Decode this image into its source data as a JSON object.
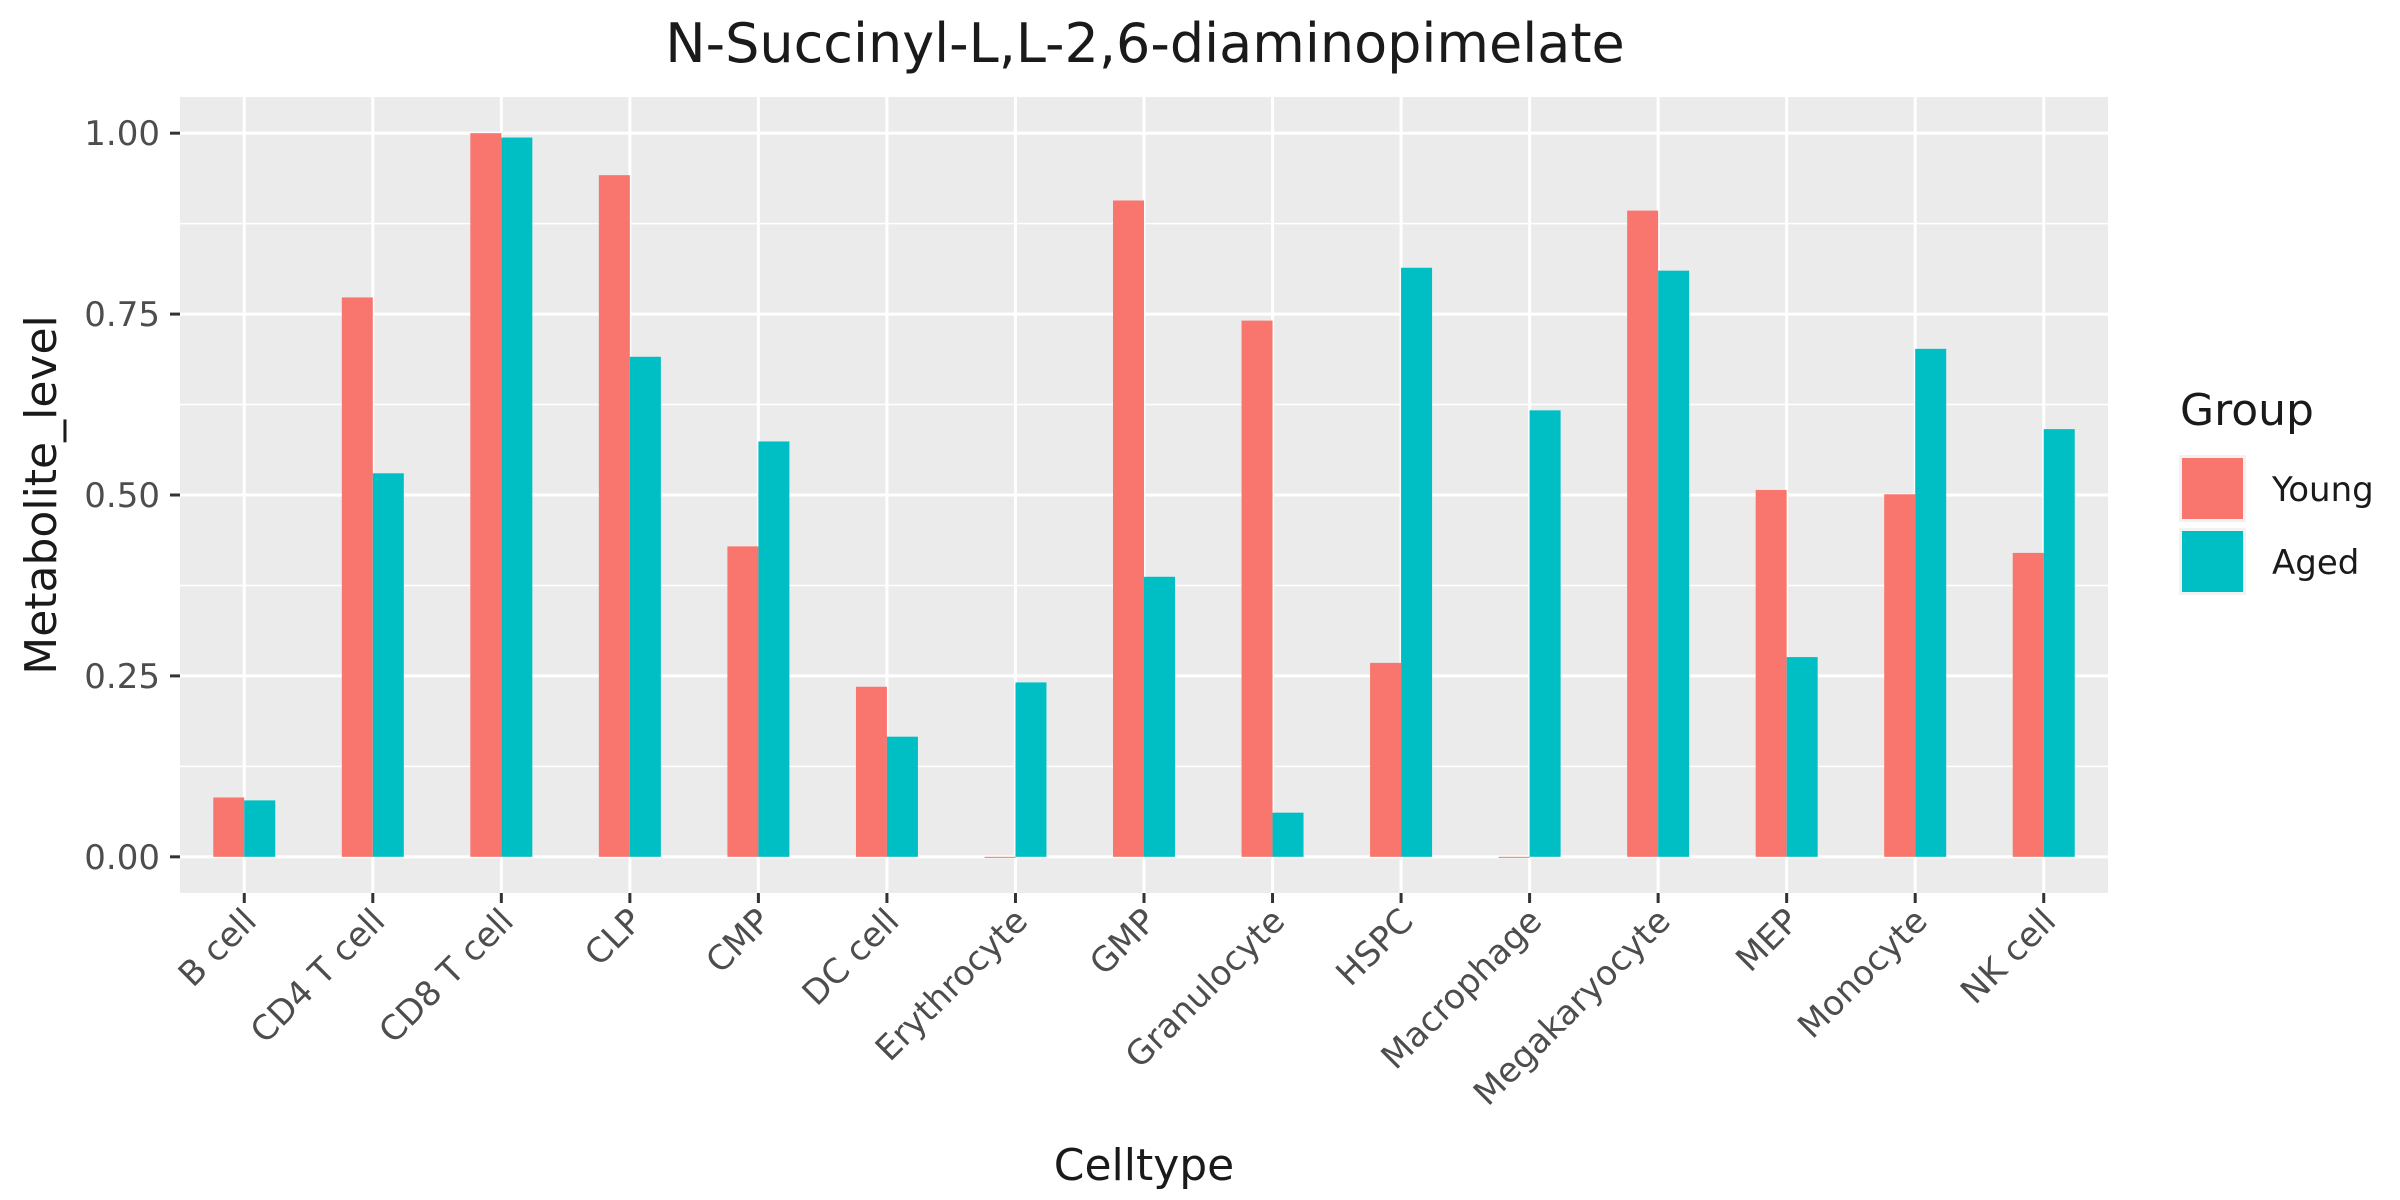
{
  "chart_data": {
    "type": "bar",
    "title": "N-Succinyl-L,L-2,6-diaminopimelate",
    "xlabel": "Celltype",
    "ylabel": "Metabolite_level",
    "ylim": [
      -0.05,
      1.05
    ],
    "yticks": [
      0.0,
      0.25,
      0.5,
      0.75,
      1.0
    ],
    "ytick_labels": [
      "0.00",
      "0.25",
      "0.50",
      "0.75",
      "1.00"
    ],
    "grid": true,
    "legend": {
      "title": "Group",
      "position": "right"
    },
    "categories": [
      "B cell",
      "CD4 T cell",
      "CD8 T cell",
      "CLP",
      "CMP",
      "DC cell",
      "Erythrocyte",
      "GMP",
      "Granulocyte",
      "HSPC",
      "Macrophage",
      "Megakaryocyte",
      "MEP",
      "Monocyte",
      "NK cell"
    ],
    "series": [
      {
        "name": "Young",
        "color": "#F8766D",
        "values": [
          0.082,
          0.773,
          1.0,
          0.942,
          0.429,
          0.235,
          0.0,
          0.907,
          0.741,
          0.268,
          0.0,
          0.893,
          0.507,
          0.501,
          0.42
        ]
      },
      {
        "name": "Aged",
        "color": "#00BFC4",
        "values": [
          0.078,
          0.53,
          0.994,
          0.691,
          0.574,
          0.166,
          0.241,
          0.387,
          0.061,
          0.814,
          0.617,
          0.81,
          0.276,
          0.702,
          0.591
        ]
      }
    ]
  }
}
